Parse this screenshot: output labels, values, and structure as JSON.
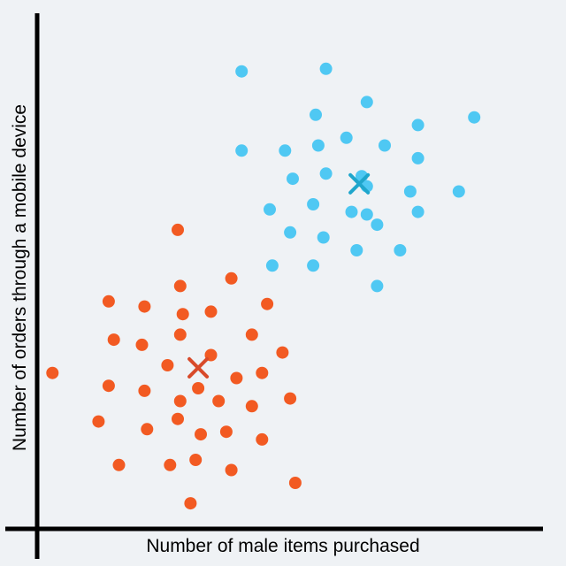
{
  "chart_data": {
    "type": "scatter",
    "xlabel": "Number of male items purchased",
    "ylabel": "Number of orders through a mobile device",
    "xlim": [
      0,
      100
    ],
    "ylim": [
      0,
      100
    ],
    "grid": false,
    "legend": "none",
    "series": [
      {
        "color": "#f25a22",
        "points": [
          [
            27.5,
            58.5
          ],
          [
            28.0,
            47.5
          ],
          [
            38.0,
            49.0
          ],
          [
            14.0,
            44.5
          ],
          [
            21.0,
            43.5
          ],
          [
            28.5,
            42.0
          ],
          [
            34.0,
            42.5
          ],
          [
            45.0,
            44.0
          ],
          [
            15.0,
            37.0
          ],
          [
            20.5,
            36.0
          ],
          [
            28.0,
            38.0
          ],
          [
            42.0,
            38.0
          ],
          [
            48.0,
            34.5
          ],
          [
            25.5,
            32.0
          ],
          [
            34.0,
            34.0
          ],
          [
            3.0,
            30.5
          ],
          [
            14.0,
            28.0
          ],
          [
            21.0,
            27.0
          ],
          [
            31.5,
            27.5
          ],
          [
            39.0,
            29.5
          ],
          [
            44.0,
            30.5
          ],
          [
            28.0,
            25.0
          ],
          [
            35.5,
            25.0
          ],
          [
            42.0,
            24.0
          ],
          [
            49.5,
            25.5
          ],
          [
            12.0,
            21.0
          ],
          [
            21.5,
            19.5
          ],
          [
            27.5,
            21.5
          ],
          [
            32.0,
            18.5
          ],
          [
            37.0,
            19.0
          ],
          [
            44.0,
            17.5
          ],
          [
            16.0,
            12.5
          ],
          [
            26.0,
            12.5
          ],
          [
            31.0,
            13.5
          ],
          [
            38.0,
            11.5
          ],
          [
            50.5,
            9.0
          ],
          [
            30.0,
            5.0
          ]
        ]
      },
      {
        "color": "#4fc8f3",
        "points": [
          [
            40.0,
            89.5
          ],
          [
            56.5,
            90.0
          ],
          [
            64.5,
            83.5
          ],
          [
            54.5,
            81.0
          ],
          [
            74.5,
            79.0
          ],
          [
            85.5,
            80.5
          ],
          [
            60.5,
            76.5
          ],
          [
            55.0,
            75.0
          ],
          [
            68.0,
            75.0
          ],
          [
            40.0,
            74.0
          ],
          [
            48.5,
            74.0
          ],
          [
            74.5,
            72.5
          ],
          [
            56.5,
            69.5
          ],
          [
            63.5,
            69.0
          ],
          [
            50.0,
            68.5
          ],
          [
            64.5,
            67.0
          ],
          [
            73.0,
            66.0
          ],
          [
            82.5,
            66.0
          ],
          [
            54.0,
            63.5
          ],
          [
            45.5,
            62.5
          ],
          [
            61.5,
            62.0
          ],
          [
            64.5,
            61.5
          ],
          [
            74.5,
            62.0
          ],
          [
            66.5,
            59.5
          ],
          [
            49.5,
            58.0
          ],
          [
            56.0,
            57.0
          ],
          [
            62.5,
            54.5
          ],
          [
            71.0,
            54.5
          ],
          [
            46.0,
            51.5
          ],
          [
            54.0,
            51.5
          ],
          [
            66.5,
            47.5
          ]
        ]
      }
    ],
    "centroids": [
      {
        "x": 31.5,
        "y": 31.5,
        "color": "#d84a2a"
      },
      {
        "x": 63.0,
        "y": 67.5,
        "color": "#1fa6cc"
      }
    ]
  }
}
